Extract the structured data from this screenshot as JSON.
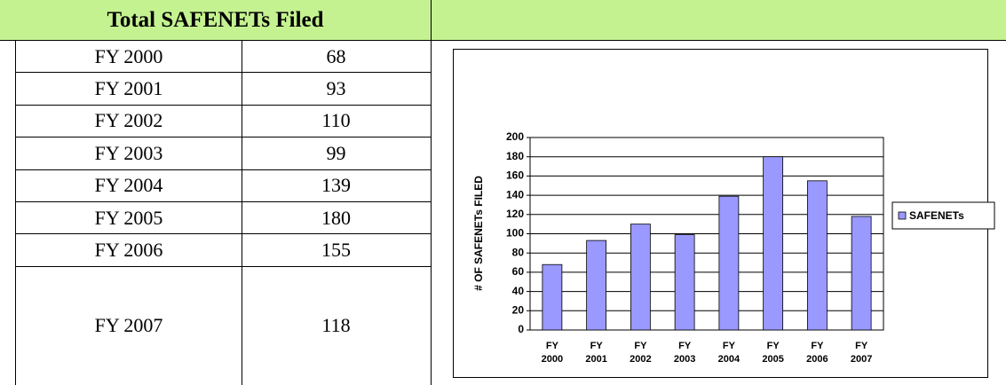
{
  "table": {
    "title": "Total SAFENETs Filed",
    "rows": [
      [
        "FY 2000",
        68
      ],
      [
        "FY 2001",
        93
      ],
      [
        "FY 2002",
        110
      ],
      [
        "FY 2003",
        99
      ],
      [
        "FY 2004",
        139
      ],
      [
        "FY 2005",
        180
      ],
      [
        "FY 2006",
        155
      ],
      [
        "FY 2007",
        118
      ]
    ]
  },
  "chart_data": {
    "type": "bar",
    "y_label": "# OF SAFENETs FILED",
    "categories": [
      "FY 2000",
      "FY 2001",
      "FY 2002",
      "FY 2003",
      "FY 2004",
      "FY 2005",
      "FY 2006",
      "FY 2007"
    ],
    "series": [
      {
        "name": "SAFENETs",
        "color": "#9999ff",
        "values": [
          68,
          93,
          110,
          99,
          139,
          180,
          155,
          118
        ]
      }
    ],
    "ylim": [
      0,
      200
    ],
    "yticks": [
      0,
      20,
      40,
      60,
      80,
      100,
      120,
      140,
      160,
      180,
      200
    ],
    "grid": true,
    "legend": "right"
  }
}
